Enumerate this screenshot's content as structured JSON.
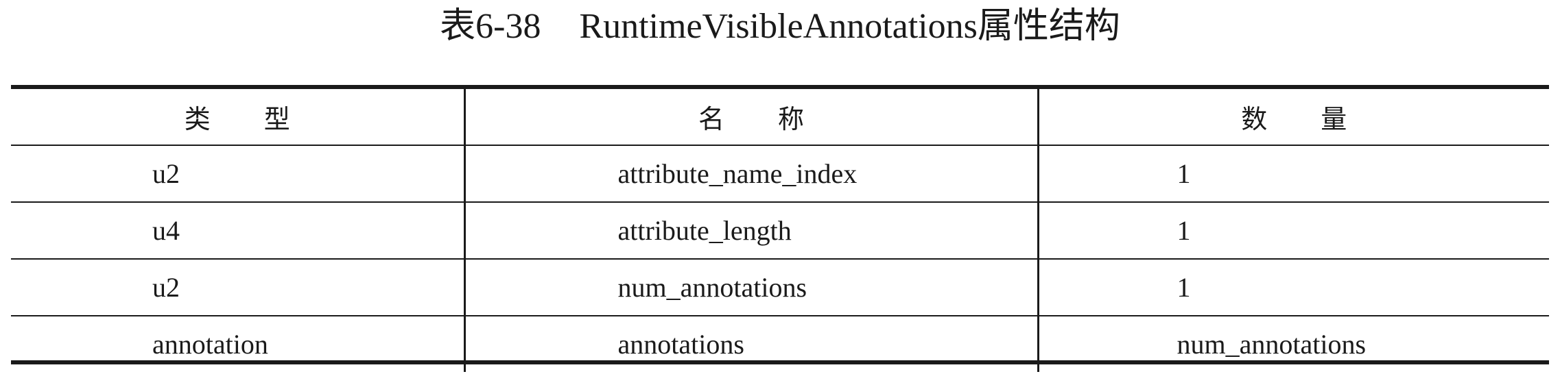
{
  "caption": {
    "number": "表6-38",
    "title": "RuntimeVisibleAnnotations属性结构"
  },
  "table": {
    "headers": [
      "类型",
      "名称",
      "数量"
    ],
    "rows": [
      [
        "u2",
        "attribute_name_index",
        "1"
      ],
      [
        "u4",
        "attribute_length",
        "1"
      ],
      [
        "u2",
        "num_annotations",
        "1"
      ],
      [
        "annotation",
        "annotations",
        "num_annotations"
      ]
    ]
  }
}
